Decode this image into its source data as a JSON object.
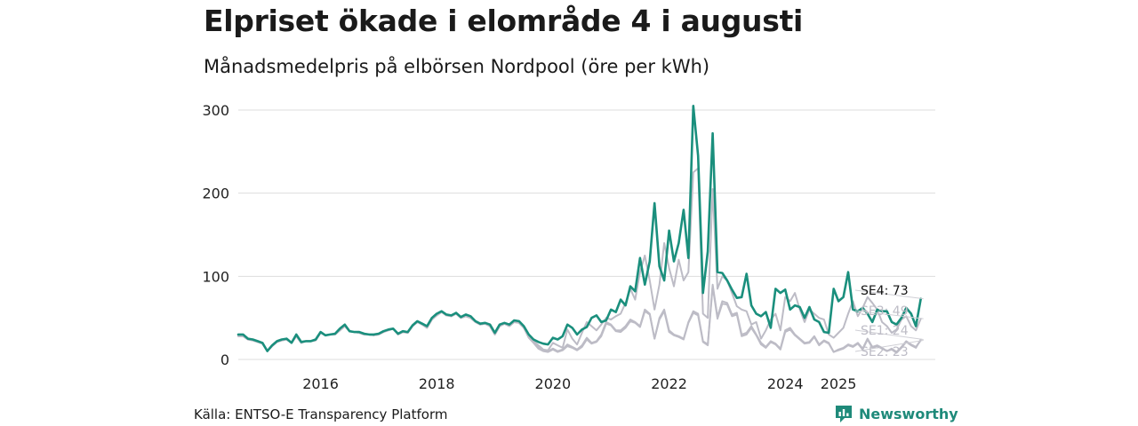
{
  "header": {
    "title": "Elpriset ökade i elområde 4 i augusti",
    "subtitle": "Månadsmedelpris på elbörsen Nordpool (öre per kWh)"
  },
  "footer": {
    "source": "Källa: ENTSO-E Transparency Platform",
    "brand": "Newsworthy"
  },
  "colors": {
    "SE4": "#1a8f7d",
    "others": "#bdbcc6",
    "grid": "#dddddd",
    "brand": "#1f8a7a"
  },
  "chart_data": {
    "type": "line",
    "title": "Elpriset ökade i elområde 4 i augusti",
    "subtitle": "Månadsmedelpris på elbörsen Nordpool (öre per kWh)",
    "ylim": [
      0,
      300
    ],
    "yticks": [
      0,
      100,
      200,
      300
    ],
    "x_start": "2015-01",
    "x_end": "2025-08",
    "xlim": [
      "2015-01",
      "2027-01"
    ],
    "xticks": [
      {
        "label": "2016",
        "x": "2016-06"
      },
      {
        "label": "2018",
        "x": "2018-06"
      },
      {
        "label": "2020",
        "x": "2020-06"
      },
      {
        "label": "2022",
        "x": "2022-06"
      },
      {
        "label": "2024",
        "x": "2024-06"
      },
      {
        "label": "2025",
        "x": "2025-05"
      }
    ],
    "grid": true,
    "legend": "end-of-line labels",
    "series": [
      {
        "name": "SE2",
        "end_label": "SE2: 23",
        "values": [
          28,
          28,
          24,
          23,
          21,
          19,
          10,
          16,
          21,
          23,
          24,
          20,
          28,
          20,
          22,
          22,
          23,
          32,
          29,
          30,
          30,
          35,
          40,
          34,
          33,
          32,
          30,
          30,
          29,
          30,
          33,
          35,
          37,
          30,
          33,
          32,
          40,
          45,
          42,
          38,
          48,
          53,
          57,
          53,
          52,
          55,
          50,
          52,
          50,
          45,
          42,
          43,
          40,
          30,
          40,
          43,
          40,
          45,
          44,
          38,
          28,
          22,
          14,
          11,
          10,
          13,
          10,
          12,
          18,
          15,
          12,
          17,
          26,
          20,
          22,
          30,
          45,
          42,
          35,
          35,
          40,
          48,
          45,
          40,
          60,
          55,
          25,
          50,
          60,
          35,
          30,
          28,
          25,
          45,
          58,
          55,
          22,
          18,
          90,
          51,
          70,
          68,
          54,
          56,
          30,
          32,
          40,
          30,
          20,
          15,
          22,
          19,
          13,
          35,
          38,
          30,
          25,
          20,
          21,
          28,
          18,
          23,
          20,
          9,
          12,
          14,
          18,
          16,
          20,
          13,
          25,
          15,
          17,
          14,
          10,
          13,
          9,
          15,
          22,
          18,
          15,
          23
        ]
      },
      {
        "name": "SE1",
        "end_label": "SE1: 24",
        "values": [
          28,
          28,
          24,
          23,
          21,
          19,
          10,
          16,
          21,
          23,
          24,
          20,
          28,
          20,
          22,
          22,
          23,
          32,
          29,
          30,
          30,
          35,
          40,
          34,
          33,
          32,
          30,
          30,
          29,
          30,
          33,
          35,
          37,
          30,
          33,
          32,
          40,
          45,
          42,
          38,
          48,
          53,
          57,
          53,
          52,
          55,
          50,
          52,
          50,
          45,
          42,
          43,
          40,
          30,
          40,
          43,
          40,
          45,
          44,
          38,
          26,
          20,
          13,
          10,
          9,
          12,
          9,
          11,
          16,
          14,
          11,
          15,
          24,
          19,
          21,
          28,
          43,
          41,
          34,
          33,
          38,
          46,
          44,
          39,
          58,
          54,
          25,
          48,
          58,
          33,
          29,
          27,
          24,
          44,
          56,
          53,
          21,
          17,
          88,
          49,
          67,
          66,
          52,
          54,
          28,
          30,
          38,
          29,
          18,
          14,
          21,
          18,
          12,
          33,
          36,
          29,
          24,
          19,
          20,
          27,
          17,
          22,
          19,
          9,
          11,
          13,
          17,
          15,
          19,
          12,
          24,
          14,
          16,
          13,
          10,
          12,
          8,
          14,
          21,
          17,
          14,
          24
        ]
      },
      {
        "name": "SE3",
        "end_label": "SE3: 49",
        "values": [
          28,
          28,
          24,
          23,
          21,
          19,
          10,
          16,
          21,
          23,
          24,
          20,
          28,
          20,
          22,
          22,
          23,
          32,
          29,
          30,
          30,
          35,
          40,
          34,
          33,
          32,
          30,
          30,
          29,
          30,
          33,
          35,
          37,
          30,
          33,
          32,
          40,
          45,
          42,
          38,
          48,
          53,
          57,
          53,
          52,
          55,
          50,
          52,
          50,
          45,
          42,
          43,
          40,
          30,
          40,
          43,
          40,
          45,
          44,
          38,
          28,
          22,
          17,
          12,
          11,
          20,
          17,
          14,
          36,
          25,
          18,
          32,
          45,
          40,
          35,
          42,
          50,
          48,
          52,
          55,
          68,
          85,
          72,
          105,
          125,
          95,
          60,
          90,
          140,
          110,
          88,
          120,
          95,
          105,
          225,
          230,
          55,
          50,
          205,
          85,
          100,
          95,
          80,
          64,
          60,
          58,
          42,
          45,
          25,
          35,
          48,
          55,
          35,
          75,
          70,
          80,
          60,
          45,
          60,
          55,
          50,
          48,
          30,
          26,
          32,
          38,
          55,
          70,
          52,
          62,
          75,
          68,
          60,
          45,
          40,
          32,
          36,
          48,
          52,
          40,
          35,
          49
        ]
      },
      {
        "name": "SE4",
        "end_label": "SE4: 73",
        "values": [
          30,
          30,
          25,
          24,
          22,
          20,
          10,
          17,
          22,
          24,
          25,
          20,
          30,
          21,
          22,
          22,
          24,
          33,
          29,
          30,
          31,
          37,
          42,
          34,
          33,
          33,
          31,
          30,
          30,
          31,
          34,
          36,
          37,
          31,
          34,
          33,
          41,
          46,
          43,
          40,
          50,
          55,
          58,
          54,
          53,
          56,
          51,
          54,
          52,
          46,
          43,
          44,
          42,
          32,
          42,
          44,
          42,
          47,
          46,
          40,
          30,
          24,
          21,
          19,
          18,
          26,
          24,
          28,
          42,
          38,
          30,
          36,
          39,
          50,
          53,
          45,
          47,
          60,
          57,
          72,
          65,
          88,
          82,
          122,
          90,
          118,
          188,
          112,
          95,
          155,
          118,
          140,
          180,
          122,
          305,
          245,
          80,
          130,
          272,
          105,
          104,
          95,
          84,
          74,
          75,
          103,
          65,
          55,
          52,
          57,
          38,
          85,
          80,
          84,
          60,
          65,
          63,
          50,
          63,
          48,
          45,
          33,
          32,
          85,
          70,
          75,
          105,
          60,
          58,
          62,
          55,
          45,
          60,
          58,
          58,
          45,
          42,
          50,
          62,
          55,
          40,
          73
        ]
      }
    ]
  }
}
